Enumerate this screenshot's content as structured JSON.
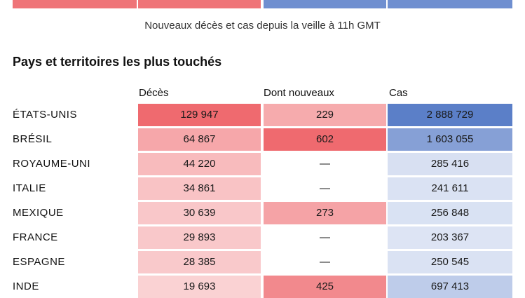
{
  "colors": {
    "deaths_base": "#ef6a6f",
    "cases_base": "#5b7fc8",
    "empty_new": "#ffffff",
    "empty_cases": "#f1f4fb"
  },
  "subtitle": "Nouveaux décès et cas depuis la veille à 11h GMT",
  "section_title": "Pays et territoires les plus touchés",
  "chart_data": {
    "type": "table",
    "columns": [
      "Décès",
      "Dont nouveaux",
      "Cas"
    ],
    "rows": [
      {
        "country": "ÉTATS-UNIS",
        "deaths": "129 947",
        "new": "229",
        "cases": "2 888 729",
        "deaths_n": 129947,
        "new_n": 229,
        "cases_n": 2888729
      },
      {
        "country": "BRÉSIL",
        "deaths": "64 867",
        "new": "602",
        "cases": "1 603 055",
        "deaths_n": 64867,
        "new_n": 602,
        "cases_n": 1603055
      },
      {
        "country": "ROYAUME-UNI",
        "deaths": "44 220",
        "new": "—",
        "cases": "285 416",
        "deaths_n": 44220,
        "new_n": 0,
        "cases_n": 285416
      },
      {
        "country": "ITALIE",
        "deaths": "34 861",
        "new": "—",
        "cases": "241 611",
        "deaths_n": 34861,
        "new_n": 0,
        "cases_n": 241611
      },
      {
        "country": "MEXIQUE",
        "deaths": "30 639",
        "new": "273",
        "cases": "256 848",
        "deaths_n": 30639,
        "new_n": 273,
        "cases_n": 256848
      },
      {
        "country": "FRANCE",
        "deaths": "29 893",
        "new": "—",
        "cases": "203 367",
        "deaths_n": 29893,
        "new_n": 0,
        "cases_n": 203367
      },
      {
        "country": "ESPAGNE",
        "deaths": "28 385",
        "new": "—",
        "cases": "250 545",
        "deaths_n": 28385,
        "new_n": 0,
        "cases_n": 250545
      },
      {
        "country": "INDE",
        "deaths": "19 693",
        "new": "425",
        "cases": "697 413",
        "deaths_n": 19693,
        "new_n": 425,
        "cases_n": 697413
      }
    ]
  }
}
